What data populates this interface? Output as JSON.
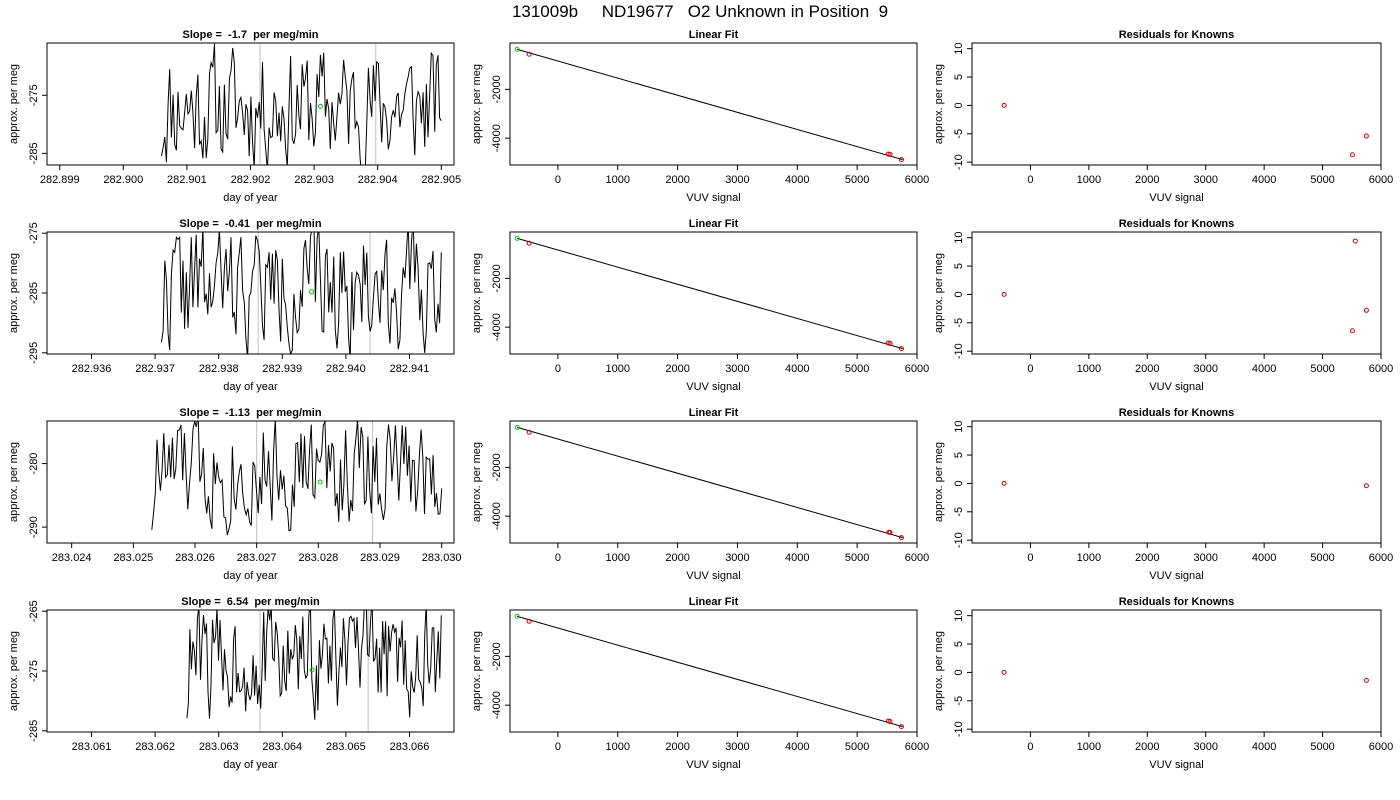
{
  "page_title": "131009b     ND19677   O2 Unknown in Position  9",
  "colors": {
    "frame": "#000000",
    "trace": "#000000",
    "marker_known": "#cc0000",
    "marker_unknown": "#00cc00",
    "vline": "#bfbfbf"
  },
  "chart_data": [
    {
      "type": "line",
      "title": "Slope =  -1.7  per meg/min",
      "xlabel": "day of year",
      "ylabel": "approx. per meg",
      "xlim": [
        282.8988,
        282.9052
      ],
      "ylim": [
        -287,
        -266
      ],
      "xticks": [
        "282.899",
        "282.900",
        "282.901",
        "282.902",
        "282.903",
        "282.904",
        "282.905"
      ],
      "yticks": [
        "-275",
        "-285"
      ],
      "trace": {
        "start": 282.9006,
        "end": 282.905,
        "center": -277,
        "amplitude": 14,
        "seed": 11
      },
      "unknown_point": {
        "x": 282.9031,
        "y": -276.9
      },
      "vlines": [
        282.90215,
        282.90397
      ]
    },
    {
      "type": "line",
      "title": "Slope =  -0.41  per meg/min",
      "xlabel": "day of year",
      "ylabel": "approx. per meg",
      "xlim": [
        282.9353,
        282.9417
      ],
      "ylim": [
        -295.2,
        -274.8
      ],
      "xticks": [
        "282.936",
        "282.937",
        "282.938",
        "282.939",
        "282.940",
        "282.941"
      ],
      "yticks": [
        "-275",
        "-285",
        "-295"
      ],
      "trace": {
        "start": 282.9371,
        "end": 282.9415,
        "center": -284,
        "amplitude": 14,
        "seed": 22
      },
      "unknown_point": {
        "x": 282.93946,
        "y": -284.8
      },
      "vlines": [
        282.93862,
        282.94038
      ]
    },
    {
      "type": "line",
      "title": "Slope =  -1.13  per meg/min",
      "xlabel": "day of year",
      "ylabel": "approx. per meg",
      "xlim": [
        283.0236,
        283.0302
      ],
      "ylim": [
        -292.5,
        -273.3
      ],
      "xticks": [
        "283.024",
        "283.025",
        "283.026",
        "283.027",
        "283.028",
        "283.029",
        "283.030"
      ],
      "yticks": [
        "-280",
        "-290"
      ],
      "trace": {
        "start": 283.0253,
        "end": 283.03,
        "center": -281,
        "amplitude": 12,
        "seed": 33
      },
      "unknown_point": {
        "x": 283.02803,
        "y": -282.9
      },
      "vlines": [
        283.027,
        283.02888
      ]
    },
    {
      "type": "line",
      "title": "Slope =  6.54  per meg/min",
      "xlabel": "day of year",
      "ylabel": "approx. per meg",
      "xlim": [
        283.0603,
        283.0667
      ],
      "ylim": [
        -285.2,
        -264.8
      ],
      "xticks": [
        "283.061",
        "283.062",
        "283.063",
        "283.064",
        "283.065",
        "283.066"
      ],
      "yticks": [
        "-265",
        "-275",
        "-285"
      ],
      "trace": {
        "start": 283.0625,
        "end": 283.0665,
        "center": -273,
        "amplitude": 13,
        "seed": 44
      },
      "unknown_point": {
        "x": 283.06447,
        "y": -274.8
      },
      "vlines": [
        283.06365,
        283.06535
      ]
    },
    {
      "type": "scatter",
      "title": "Linear Fit",
      "xlabel": "VUV signal",
      "ylabel": "approx. per meg",
      "xlim": [
        -800,
        6000
      ],
      "ylim": [
        -5100,
        -100
      ],
      "xticks": [
        "0",
        "1000",
        "2000",
        "3000",
        "4000",
        "5000",
        "6000"
      ],
      "yticks": [
        "-2000",
        "-4000"
      ],
      "line": [
        [
          -680,
          -360
        ],
        [
          5760,
          -4880
        ]
      ],
      "unknown_points": [
        [
          -680,
          -360
        ]
      ],
      "known_points": [
        [
          -480,
          -560
        ],
        [
          5520,
          -4650
        ],
        [
          5550,
          -4670
        ],
        [
          5740,
          -4880
        ]
      ]
    },
    {
      "type": "scatter",
      "title": "Linear Fit",
      "xlabel": "VUV signal",
      "ylabel": "approx. per meg",
      "xlim": [
        -800,
        6000
      ],
      "ylim": [
        -5100,
        -100
      ],
      "xticks": [
        "0",
        "1000",
        "2000",
        "3000",
        "4000",
        "5000",
        "6000"
      ],
      "yticks": [
        "-2000",
        "-4000"
      ],
      "line": [
        [
          -680,
          -360
        ],
        [
          5760,
          -4880
        ]
      ],
      "unknown_points": [
        [
          -680,
          -360
        ]
      ],
      "known_points": [
        [
          -480,
          -560
        ],
        [
          5520,
          -4650
        ],
        [
          5550,
          -4670
        ],
        [
          5740,
          -4880
        ]
      ]
    },
    {
      "type": "scatter",
      "title": "Linear Fit",
      "xlabel": "VUV signal",
      "ylabel": "approx. per meg",
      "xlim": [
        -800,
        6000
      ],
      "ylim": [
        -5100,
        -100
      ],
      "xticks": [
        "0",
        "1000",
        "2000",
        "3000",
        "4000",
        "5000",
        "6000"
      ],
      "yticks": [
        "-2000",
        "-4000"
      ],
      "line": [
        [
          -680,
          -360
        ],
        [
          5760,
          -4880
        ]
      ],
      "unknown_points": [
        [
          -680,
          -360
        ]
      ],
      "known_points": [
        [
          -480,
          -560
        ],
        [
          5530,
          -4660
        ],
        [
          5550,
          -4670
        ],
        [
          5740,
          -4880
        ]
      ]
    },
    {
      "type": "scatter",
      "title": "Linear Fit",
      "xlabel": "VUV signal",
      "ylabel": "approx. per meg",
      "xlim": [
        -800,
        6000
      ],
      "ylim": [
        -5100,
        -100
      ],
      "xticks": [
        "0",
        "1000",
        "2000",
        "3000",
        "4000",
        "5000",
        "6000"
      ],
      "yticks": [
        "-2000",
        "-4000"
      ],
      "line": [
        [
          -680,
          -360
        ],
        [
          5760,
          -4880
        ]
      ],
      "unknown_points": [
        [
          -680,
          -360
        ]
      ],
      "known_points": [
        [
          -480,
          -560
        ],
        [
          5520,
          -4650
        ],
        [
          5550,
          -4670
        ],
        [
          5740,
          -4880
        ]
      ]
    },
    {
      "type": "scatter",
      "title": "Residuals for Knowns",
      "xlabel": "VUV signal",
      "ylabel": "approx. per meg",
      "xlim": [
        -1000,
        6000
      ],
      "ylim": [
        -10.5,
        11
      ],
      "xticks": [
        "0",
        "1000",
        "2000",
        "3000",
        "4000",
        "5000",
        "6000"
      ],
      "yticks": [
        "10",
        "5",
        "0",
        "-5",
        "-10"
      ],
      "known_points": [
        [
          -450,
          0
        ],
        [
          5510,
          -8.7
        ],
        [
          5750,
          -5.4
        ]
      ]
    },
    {
      "type": "scatter",
      "title": "Residuals for Knowns",
      "xlabel": "VUV signal",
      "ylabel": "approx. per meg",
      "xlim": [
        -1000,
        6000
      ],
      "ylim": [
        -10.5,
        11
      ],
      "xticks": [
        "0",
        "1000",
        "2000",
        "3000",
        "4000",
        "5000",
        "6000"
      ],
      "yticks": [
        "10",
        "5",
        "0",
        "-5",
        "-10"
      ],
      "known_points": [
        [
          -450,
          0
        ],
        [
          5560,
          9.4
        ],
        [
          5510,
          -6.4
        ],
        [
          5750,
          -2.8
        ]
      ]
    },
    {
      "type": "scatter",
      "title": "Residuals for Knowns",
      "xlabel": "VUV signal",
      "ylabel": "approx. per meg",
      "xlim": [
        -1000,
        6000
      ],
      "ylim": [
        -10.5,
        11
      ],
      "xticks": [
        "0",
        "1000",
        "2000",
        "3000",
        "4000",
        "5000",
        "6000"
      ],
      "yticks": [
        "10",
        "5",
        "0",
        "-5",
        "-10"
      ],
      "known_points": [
        [
          -450,
          0
        ],
        [
          5750,
          -0.4
        ]
      ]
    },
    {
      "type": "scatter",
      "title": "Residuals for Knowns",
      "xlabel": "VUV signal",
      "ylabel": "approx. per meg",
      "xlim": [
        -1000,
        6000
      ],
      "ylim": [
        -10.5,
        11
      ],
      "xticks": [
        "0",
        "1000",
        "2000",
        "3000",
        "4000",
        "5000",
        "6000"
      ],
      "yticks": [
        "10",
        "5",
        "0",
        "-5",
        "-10"
      ],
      "known_points": [
        [
          -450,
          0
        ],
        [
          5750,
          -1.4
        ]
      ]
    }
  ]
}
